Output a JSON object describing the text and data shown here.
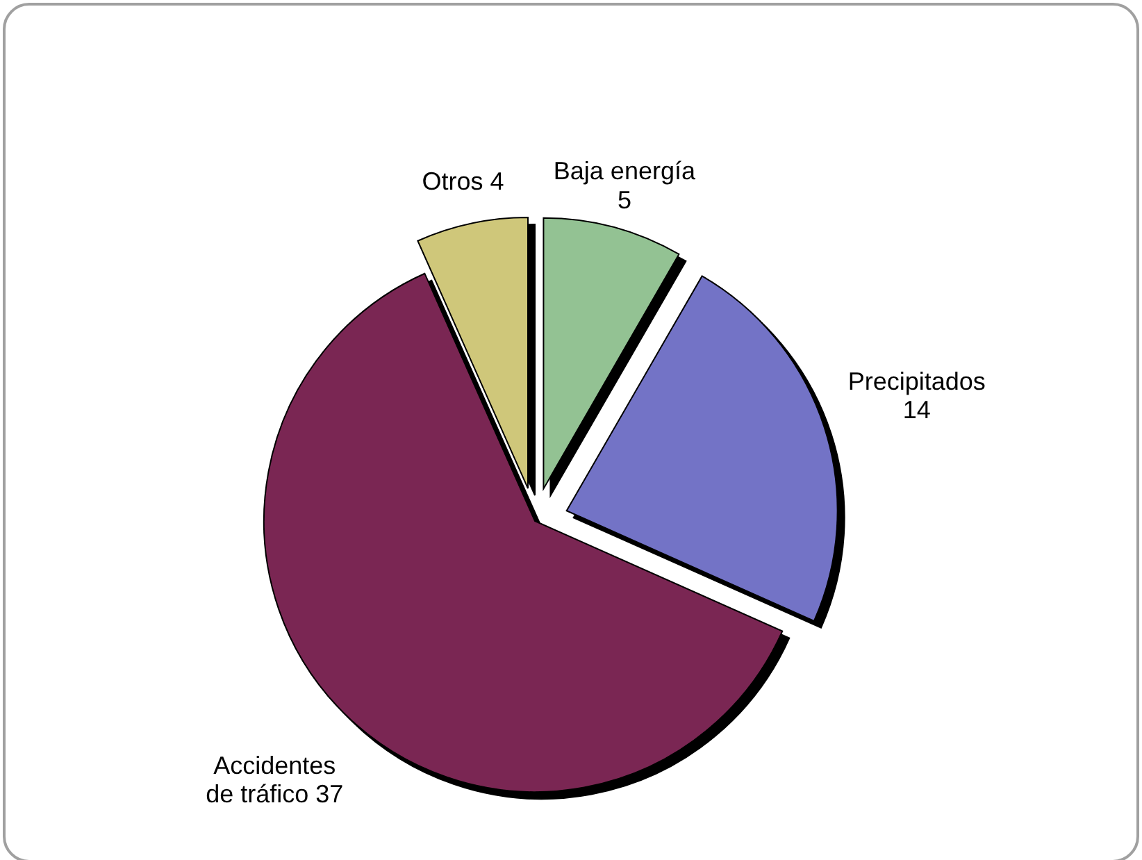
{
  "chart_data": {
    "type": "pie",
    "categories": [
      "Baja energía",
      "Precipitados",
      "Accidentes de tráfico",
      "Otros"
    ],
    "values": [
      5,
      14,
      37,
      4
    ],
    "colors": [
      "#93c293",
      "#7373c6",
      "#7a2852",
      "#cfc77a"
    ],
    "data_labels": true,
    "legend": false
  }
}
